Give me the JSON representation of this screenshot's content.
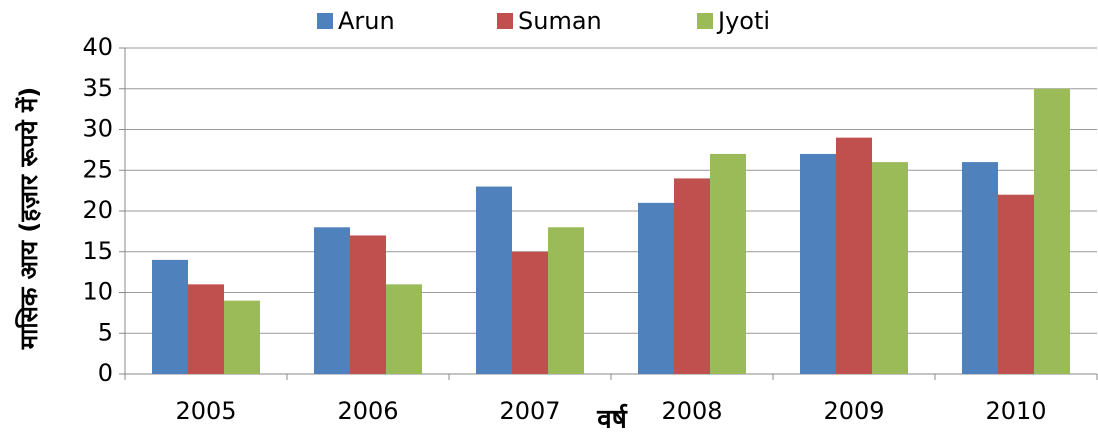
{
  "chart_data": {
    "type": "bar",
    "x_label": "वर्ष",
    "y_label": "मासिक आय (हज़ार रूपये में)",
    "categories": [
      "2005",
      "2006",
      "2007",
      "2008",
      "2009",
      "2010"
    ],
    "series": [
      {
        "name": "Arun",
        "color": "#4f81bd",
        "values": [
          14,
          18,
          23,
          21,
          27,
          26
        ]
      },
      {
        "name": "Suman",
        "color": "#c0504d",
        "values": [
          11,
          17,
          15,
          24,
          29,
          22
        ]
      },
      {
        "name": "Jyoti",
        "color": "#9bbb59",
        "values": [
          9,
          11,
          18,
          27,
          26,
          35
        ]
      }
    ],
    "ylim": [
      0,
      40
    ],
    "yticks": [
      0,
      5,
      10,
      15,
      20,
      25,
      30,
      35,
      40
    ],
    "grid": true,
    "legend": "top"
  }
}
